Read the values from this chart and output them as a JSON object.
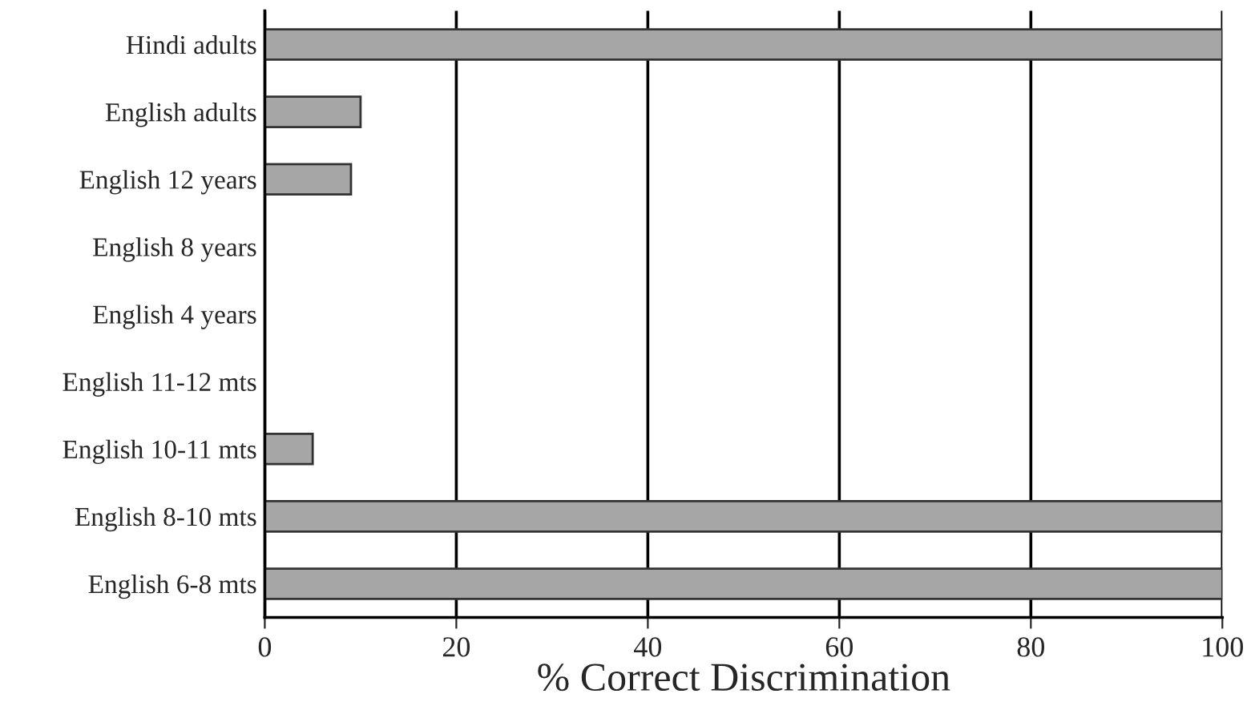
{
  "chart_data": {
    "type": "bar",
    "orientation": "horizontal",
    "xlabel": "% Correct Discrimination",
    "categories": [
      "Hindi adults",
      "English adults",
      "English 12 years",
      "English 8 years",
      "English 4 years",
      "English 11-12 mts",
      "English 10-11 mts",
      "English 8-10 mts",
      "English 6-8 mts"
    ],
    "values": [
      100,
      10,
      9,
      0,
      0,
      0,
      5,
      100,
      100
    ],
    "color": "#a6a6a6",
    "xlim": [
      0,
      100
    ],
    "xticks": [
      0,
      20,
      40,
      60,
      80,
      100
    ],
    "grid": "x",
    "legend": false
  }
}
